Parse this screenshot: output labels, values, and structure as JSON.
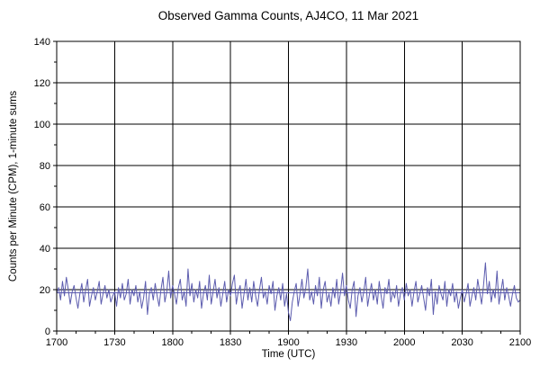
{
  "chart_data": {
    "type": "line",
    "title": "Observed Gamma Counts, AJ4CO, 11 Mar 2021",
    "xlabel": "Time (UTC)",
    "ylabel": "Counts per Minute (CPM), 1-minute sums",
    "x_ticks": [
      "1700",
      "1730",
      "1800",
      "1830",
      "1900",
      "1930",
      "2000",
      "2030",
      "2100"
    ],
    "x_minor_step_minutes": 10,
    "y_ticks": [
      0,
      20,
      40,
      60,
      80,
      100,
      120,
      140
    ],
    "y_minor_step": 10,
    "ylim": [
      0,
      140
    ],
    "grid": true,
    "legend": false,
    "sample_interval_minutes": 1,
    "line_color": "#5c5cae",
    "grid_color": "#000000",
    "reference_line": 18.5,
    "series": [
      {
        "name": "gamma-counts-1min",
        "values": [
          18,
          21,
          15,
          24,
          17,
          26,
          20,
          13,
          19,
          22,
          16,
          11,
          18,
          23,
          14,
          20,
          25,
          12,
          17,
          21,
          15,
          19,
          24,
          13,
          18,
          22,
          16,
          20,
          14,
          17,
          19,
          12,
          21,
          16,
          23,
          15,
          18,
          25,
          13,
          20,
          17,
          22,
          14,
          19,
          11,
          16,
          24,
          8,
          18,
          21,
          15,
          23,
          17,
          12,
          20,
          26,
          14,
          19,
          29,
          16,
          22,
          18,
          13,
          21,
          25,
          15,
          19,
          12,
          30,
          17,
          23,
          14,
          20,
          16,
          24,
          11,
          18,
          22,
          15,
          27,
          13,
          19,
          25,
          16,
          21,
          12,
          18,
          24,
          14,
          20,
          17,
          23,
          27,
          13,
          19,
          22,
          11,
          18,
          25,
          15,
          21,
          14,
          24,
          17,
          12,
          20,
          26,
          16,
          19,
          13,
          22,
          18,
          24,
          10,
          17,
          21,
          15,
          23,
          12,
          18,
          9,
          5,
          14,
          19,
          23,
          12,
          18,
          25,
          16,
          21,
          30,
          15,
          19,
          13,
          22,
          17,
          26,
          11,
          20,
          24,
          14,
          18,
          12,
          21,
          16,
          25,
          13,
          19,
          28,
          17,
          22,
          15,
          11,
          20,
          24,
          7,
          17,
          21,
          14,
          19,
          26,
          12,
          18,
          23,
          15,
          20,
          13,
          24,
          17,
          11,
          21,
          18,
          25,
          14,
          19,
          16,
          22,
          12,
          18,
          21,
          15,
          23,
          17,
          20,
          12,
          19,
          24,
          14,
          18,
          22,
          16,
          10,
          21,
          17,
          25,
          8,
          19,
          13,
          22,
          18,
          15,
          24,
          12,
          20,
          17,
          23,
          14,
          19,
          11,
          16,
          20,
          14,
          18,
          23,
          12,
          17,
          21,
          15,
          25,
          19,
          13,
          22,
          33,
          18,
          24,
          14,
          20,
          16,
          29,
          13,
          19,
          25,
          15,
          21,
          17,
          12,
          18,
          22,
          16,
          14,
          15
        ]
      }
    ]
  }
}
